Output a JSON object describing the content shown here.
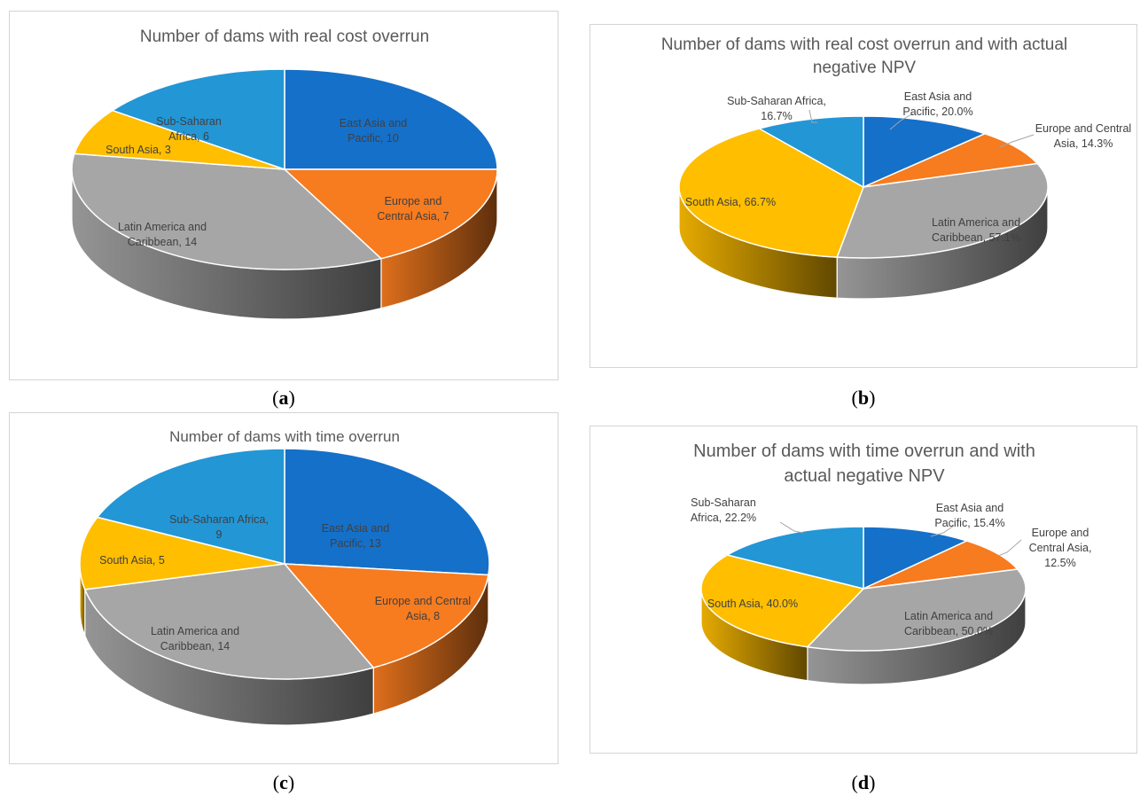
{
  "colors": {
    "east_asia": "#1570c9",
    "europe": "#f77b1f",
    "latin": "#a6a6a6",
    "south_asia": "#ffbe00",
    "ssa": "#2396d6",
    "title": "#595959",
    "label": "#404040"
  },
  "chart_data": [
    {
      "type": "pie",
      "panel": "a",
      "title": "Number of dams with real cost overrun",
      "categories": [
        "East Asia and Pacific",
        "Europe and Central Asia",
        "Latin America and Caribbean",
        "South Asia",
        "Sub-Saharan Africa"
      ],
      "values": [
        10,
        7,
        14,
        3,
        6
      ],
      "labels": [
        [
          "East Asia and",
          "Pacific, 10"
        ],
        [
          "Europe and",
          "Central Asia, 7"
        ],
        [
          "Latin America and",
          "Caribbean, 14"
        ],
        [
          "South Asia, 3"
        ],
        [
          "Sub-Saharan",
          "Africa, 6"
        ]
      ],
      "caption": "a"
    },
    {
      "type": "pie",
      "panel": "b",
      "title": [
        "Number of dams with real cost overrun and with actual",
        "negative NPV"
      ],
      "categories": [
        "East Asia and Pacific",
        "Europe and Central Asia",
        "Latin America and Caribbean",
        "South Asia",
        "Sub-Saharan Africa"
      ],
      "values": [
        20.0,
        14.3,
        57.1,
        66.7,
        16.7
      ],
      "labels": [
        [
          "East Asia and",
          "Pacific, 20.0%"
        ],
        [
          "Europe and Central",
          "Asia, 14.3%"
        ],
        [
          "Latin America and",
          "Caribbean, 57.1%"
        ],
        [
          "South Asia, 66.7%"
        ],
        [
          "Sub-Saharan Africa,",
          "16.7%"
        ]
      ],
      "caption": "b"
    },
    {
      "type": "pie",
      "panel": "c",
      "title": "Number of dams with time overrun",
      "categories": [
        "East Asia and Pacific",
        "Europe and Central Asia",
        "Latin America and Caribbean",
        "South Asia",
        "Sub-Saharan Africa"
      ],
      "values": [
        13,
        8,
        14,
        5,
        9
      ],
      "labels": [
        [
          "East Asia and",
          "Pacific, 13"
        ],
        [
          "Europe and Central",
          "Asia, 8"
        ],
        [
          "Latin America and",
          "Caribbean, 14"
        ],
        [
          "South Asia, 5"
        ],
        [
          "Sub-Saharan Africa,",
          "9"
        ]
      ],
      "caption": "c"
    },
    {
      "type": "pie",
      "panel": "d",
      "title": [
        "Number of dams with time overrun and with",
        "actual negative NPV"
      ],
      "categories": [
        "East Asia and Pacific",
        "Europe and Central Asia",
        "Latin America and Caribbean",
        "South Asia",
        "Sub-Saharan Africa"
      ],
      "values": [
        15.4,
        12.5,
        50.0,
        40.0,
        22.2
      ],
      "labels": [
        [
          "East Asia and",
          "Pacific, 15.4%"
        ],
        [
          "Europe and",
          "Central Asia,",
          "12.5%"
        ],
        [
          "Latin America and",
          "Caribbean, 50.0%"
        ],
        [
          "South Asia, 40.0%"
        ],
        [
          "Sub-Saharan",
          "Africa, 22.2%"
        ]
      ],
      "caption": "d"
    }
  ]
}
